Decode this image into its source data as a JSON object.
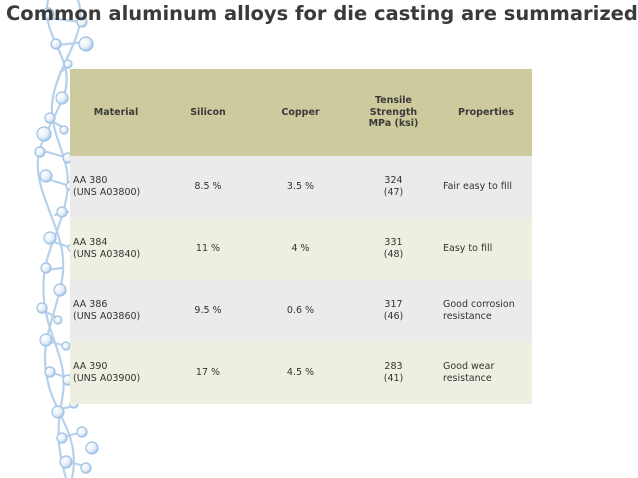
{
  "slide": {
    "title": "Common aluminum alloys for die casting are summarized as fol"
  },
  "table": {
    "headers": {
      "material": "Material",
      "silicon": "Silicon",
      "copper": "Copper",
      "tensile_line1": "Tensile Strength",
      "tensile_line2": "MPa (ksi)",
      "properties": "Properties"
    },
    "rows": [
      {
        "material_line1": "AA 380",
        "material_line2": "(UNS A03800)",
        "silicon": "8.5 %",
        "copper": "3.5 %",
        "tensile_mpa": "324",
        "tensile_ksi": "(47)",
        "properties_line1": "Fair easy to fill",
        "properties_line2": ""
      },
      {
        "material_line1": "AA 384",
        "material_line2": "(UNS A03840)",
        "silicon": "11 %",
        "copper": "4 %",
        "tensile_mpa": "331",
        "tensile_ksi": "(48)",
        "properties_line1": "Easy to fill",
        "properties_line2": ""
      },
      {
        "material_line1": "AA 386",
        "material_line2": "(UNS A03860)",
        "silicon": "9.5 %",
        "copper": "0.6 %",
        "tensile_mpa": "317",
        "tensile_ksi": "(46)",
        "properties_line1": "Good corrosion",
        "properties_line2": "resistance"
      },
      {
        "material_line1": "AA 390",
        "material_line2": "(UNS A03900)",
        "silicon": "17 %",
        "copper": "4.5 %",
        "tensile_mpa": "283",
        "tensile_ksi": "(41)",
        "properties_line1": "Good wear",
        "properties_line2": "resistance"
      }
    ]
  },
  "colors": {
    "header_bg": "#cdcb9d",
    "row_odd_bg": "#ebebeb",
    "row_even_bg": "#efefe1",
    "dna_stroke": "#a9c8e8"
  },
  "decoration": {
    "icon": "dna-helix-icon"
  }
}
